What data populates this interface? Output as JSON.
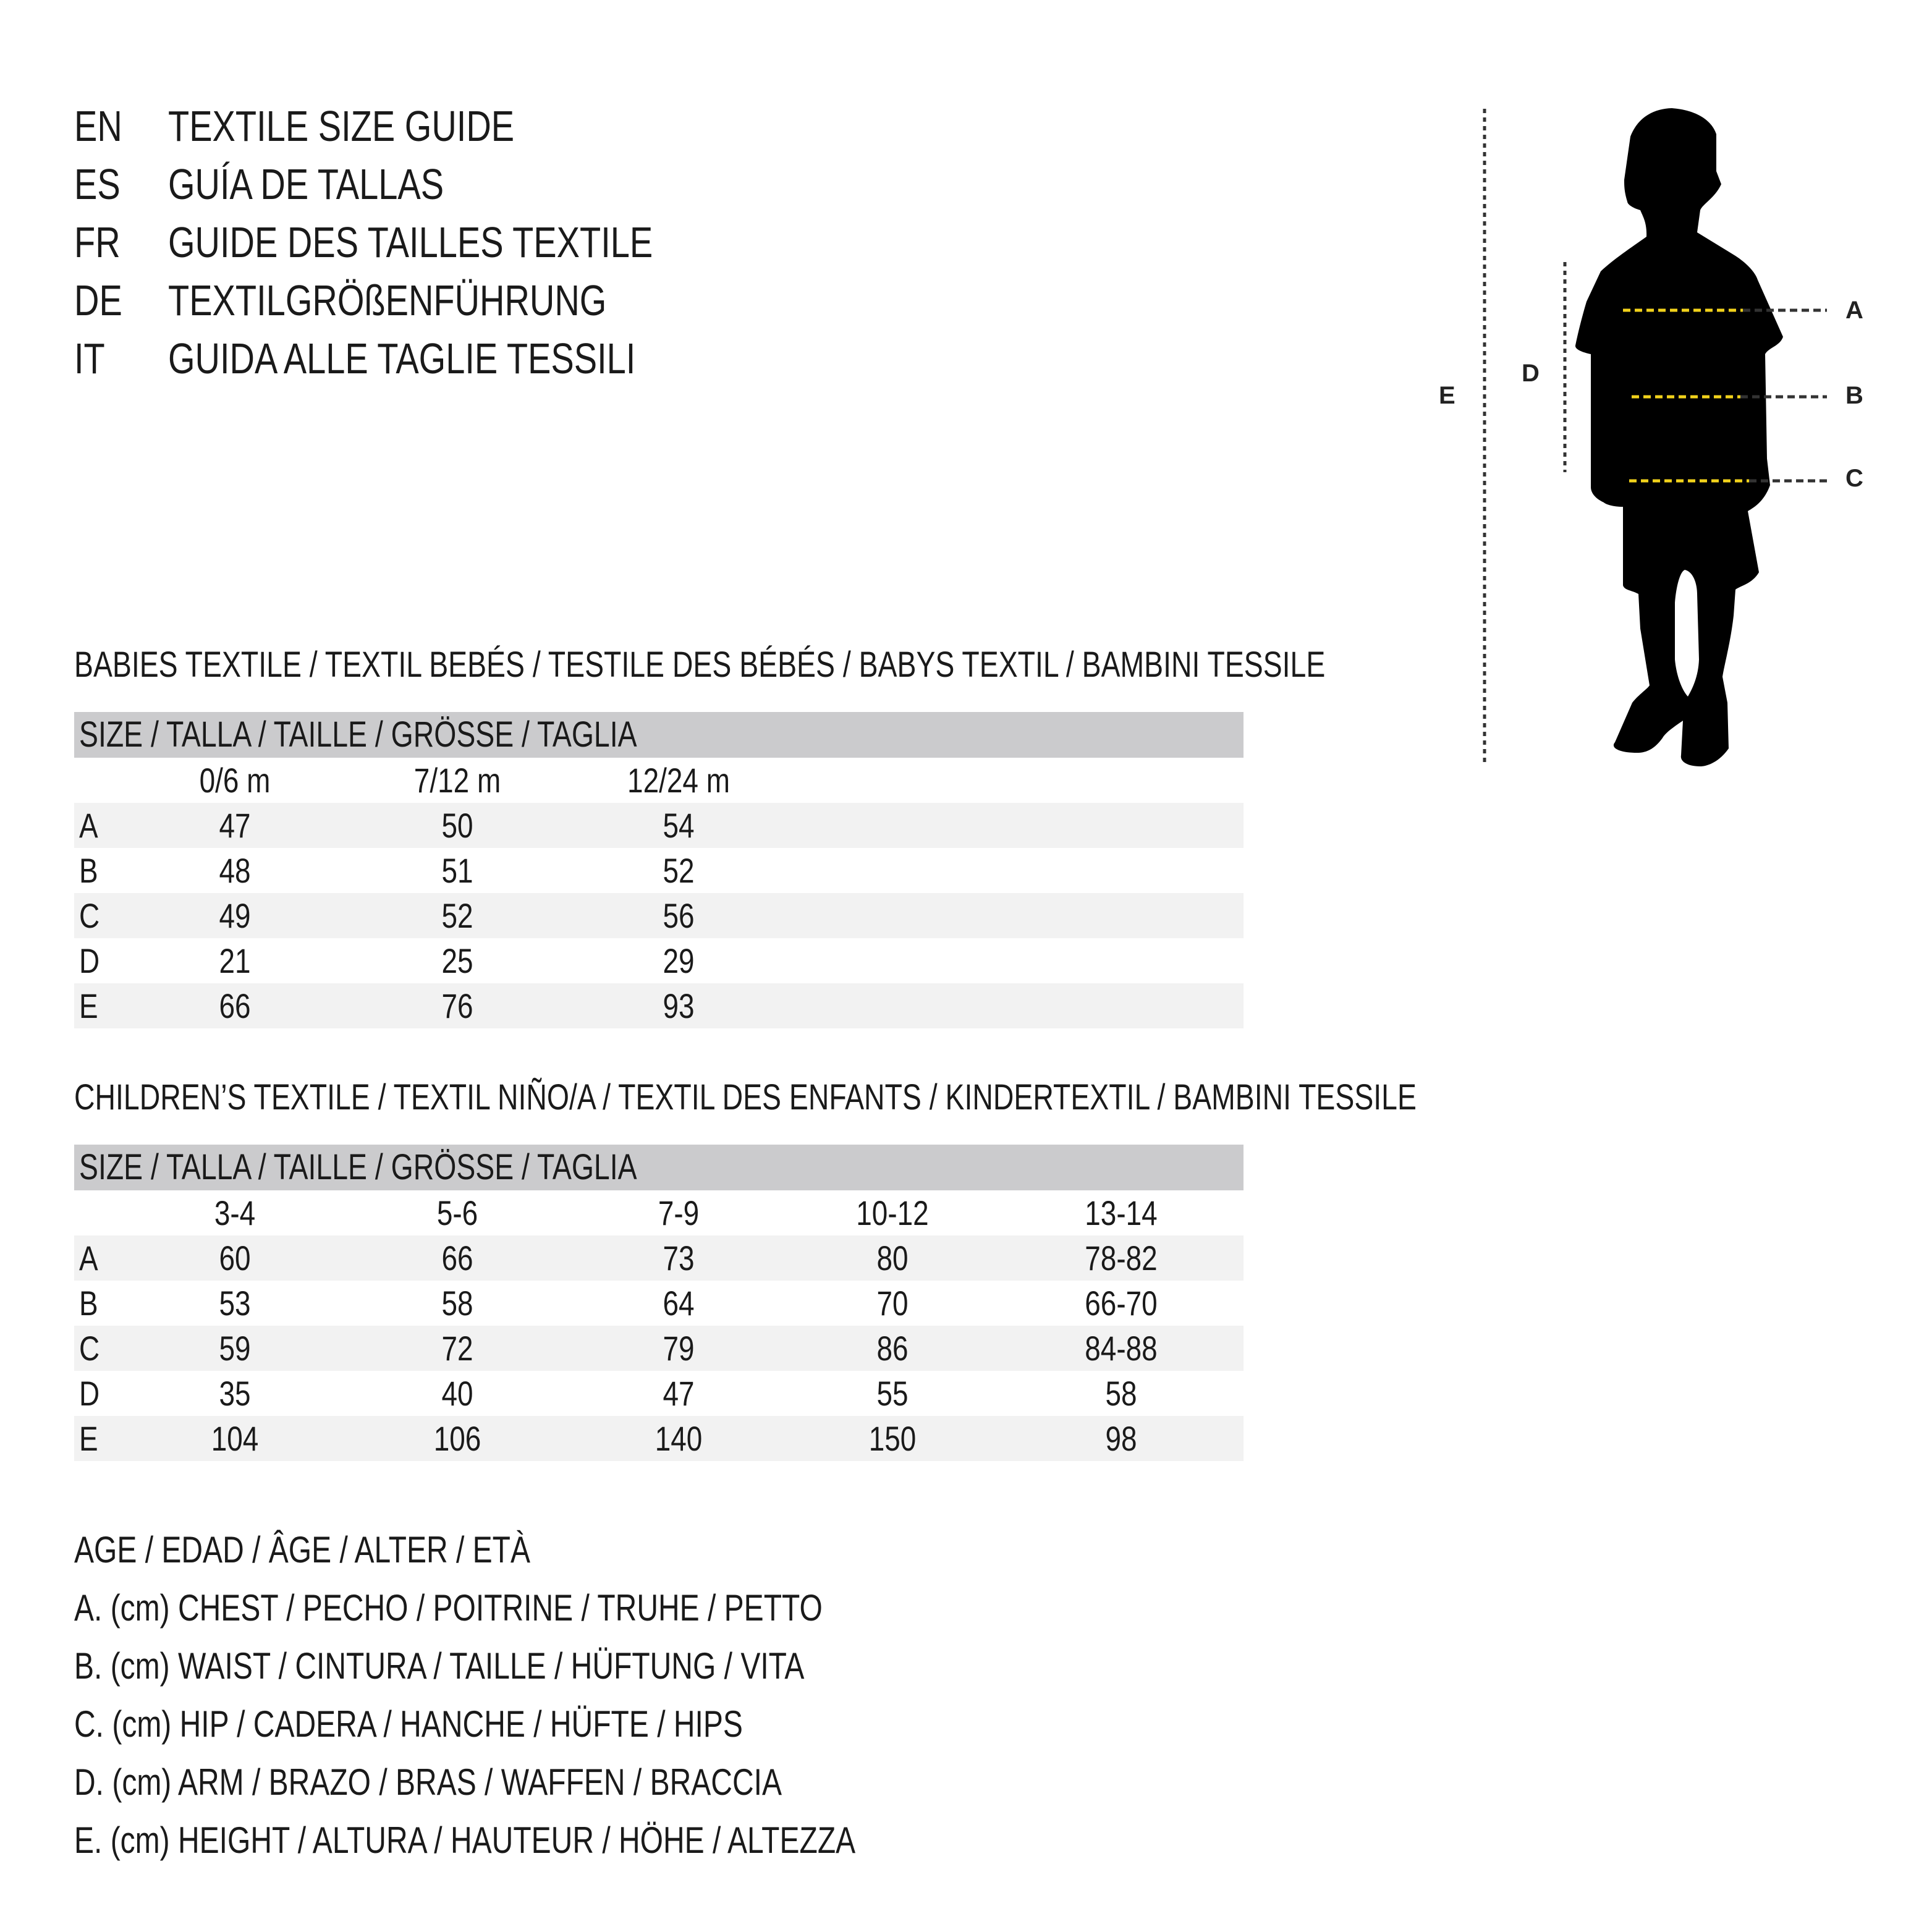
{
  "titles": [
    {
      "code": "EN",
      "text": "TEXTILE SIZE GUIDE"
    },
    {
      "code": "ES",
      "text": "GUÍA DE TALLAS"
    },
    {
      "code": "FR",
      "text": "GUIDE DES TAILLES TEXTILE"
    },
    {
      "code": "DE",
      "text": "TEXTILGRÖßENFÜHRUNG"
    },
    {
      "code": "IT",
      "text": "GUIDA ALLE TAGLIE TESSILI"
    }
  ],
  "diagram": {
    "labels": {
      "A": "A",
      "B": "B",
      "C": "C",
      "D": "D",
      "E": "E"
    },
    "colors": {
      "silhouette": "#000000",
      "measure_line": "#f2d21b",
      "guide_line": "#333333"
    }
  },
  "babies": {
    "heading": "BABIES TEXTILE / TEXTIL BEBÉS / TESTILE DES BÉBÉS / BABYS TEXTIL / BAMBINI TESSILE",
    "size_header": "SIZE / TALLA / TAILLE / GRÖSSE / TAGLIA",
    "columns": [
      "0/6 m",
      "7/12 m",
      "12/24 m"
    ],
    "rows": [
      {
        "label": "A",
        "values": [
          "47",
          "50",
          "54"
        ]
      },
      {
        "label": "B",
        "values": [
          "48",
          "51",
          "52"
        ]
      },
      {
        "label": "C",
        "values": [
          "49",
          "52",
          "56"
        ]
      },
      {
        "label": "D",
        "values": [
          "21",
          "25",
          "29"
        ]
      },
      {
        "label": "E",
        "values": [
          "66",
          "76",
          "93"
        ]
      }
    ]
  },
  "children": {
    "heading": "CHILDREN’S TEXTILE / TEXTIL NIÑO/A / TEXTIL DES ENFANTS / KINDERTEXTIL / BAMBINI TESSILE",
    "size_header": "SIZE / TALLA / TAILLE / GRÖSSE / TAGLIA",
    "columns": [
      "3-4",
      "5-6",
      "7-9",
      "10-12",
      "13-14"
    ],
    "rows": [
      {
        "label": "A",
        "values": [
          "60",
          "66",
          "73",
          "80",
          "78-82"
        ]
      },
      {
        "label": "B",
        "values": [
          "53",
          "58",
          "64",
          "70",
          "66-70"
        ]
      },
      {
        "label": "C",
        "values": [
          "59",
          "72",
          "79",
          "86",
          "84-88"
        ]
      },
      {
        "label": "D",
        "values": [
          "35",
          "40",
          "47",
          "55",
          "58"
        ]
      },
      {
        "label": "E",
        "values": [
          "104",
          "106",
          "140",
          "150",
          "98"
        ]
      }
    ]
  },
  "legend": [
    "AGE / EDAD / ÂGE / ALTER / ETÀ",
    "A. (cm) CHEST / PECHO / POITRINE / TRUHE / PETTO",
    "B. (cm) WAIST / CINTURA / TAILLE / HÜFTUNG / VITA",
    "C. (cm) HIP / CADERA / HANCHE / HÜFTE / HIPS",
    "D. (cm) ARM / BRAZO / BRAS / WAFFEN / BRACCIA",
    "E. (cm) HEIGHT / ALTURA / HAUTEUR / HÖHE / ALTEZZA"
  ]
}
